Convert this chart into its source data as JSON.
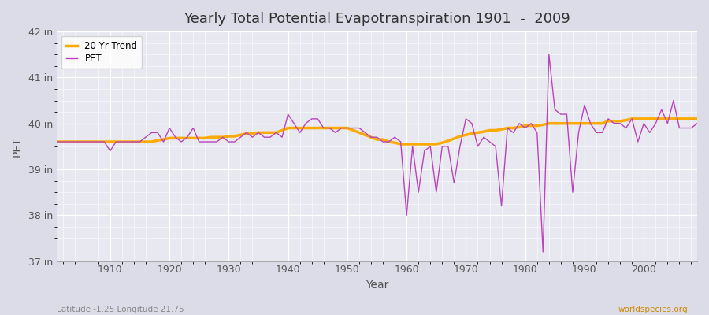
{
  "title": "Yearly Total Potential Evapotranspiration 1901  -  2009",
  "ylabel": "PET",
  "xlabel": "Year",
  "subtitle_left": "Latitude -1.25 Longitude 21.75",
  "subtitle_right": "worldspecies.org",
  "pet_color": "#bb44bb",
  "trend_color": "#ffaa00",
  "background_color": "#dcdce8",
  "plot_bg_color": "#e8e8f0",
  "grid_color": "#ffffff",
  "ylim": [
    37,
    42
  ],
  "yticks": [
    37,
    38,
    39,
    40,
    41,
    42
  ],
  "ytick_labels": [
    "37 in",
    "38 in",
    "39 in",
    "40 in",
    "41 in",
    "42 in"
  ],
  "xticks": [
    1910,
    1920,
    1930,
    1940,
    1950,
    1960,
    1970,
    1980,
    1990,
    2000
  ],
  "years": [
    1901,
    1902,
    1903,
    1904,
    1905,
    1906,
    1907,
    1908,
    1909,
    1910,
    1911,
    1912,
    1913,
    1914,
    1915,
    1916,
    1917,
    1918,
    1919,
    1920,
    1921,
    1922,
    1923,
    1924,
    1925,
    1926,
    1927,
    1928,
    1929,
    1930,
    1931,
    1932,
    1933,
    1934,
    1935,
    1936,
    1937,
    1938,
    1939,
    1940,
    1941,
    1942,
    1943,
    1944,
    1945,
    1946,
    1947,
    1948,
    1949,
    1950,
    1951,
    1952,
    1953,
    1954,
    1955,
    1956,
    1957,
    1958,
    1959,
    1960,
    1961,
    1962,
    1963,
    1964,
    1965,
    1966,
    1967,
    1968,
    1969,
    1970,
    1971,
    1972,
    1973,
    1974,
    1975,
    1976,
    1977,
    1978,
    1979,
    1980,
    1981,
    1982,
    1983,
    1984,
    1985,
    1986,
    1987,
    1988,
    1989,
    1990,
    1991,
    1992,
    1993,
    1994,
    1995,
    1996,
    1997,
    1998,
    1999,
    2000,
    2001,
    2002,
    2003,
    2004,
    2005,
    2006,
    2007,
    2008,
    2009
  ],
  "pet": [
    39.6,
    39.6,
    39.6,
    39.6,
    39.6,
    39.6,
    39.6,
    39.6,
    39.6,
    39.4,
    39.6,
    39.6,
    39.6,
    39.6,
    39.6,
    39.7,
    39.8,
    39.8,
    39.6,
    39.9,
    39.7,
    39.6,
    39.7,
    39.9,
    39.6,
    39.6,
    39.6,
    39.6,
    39.7,
    39.6,
    39.6,
    39.7,
    39.8,
    39.7,
    39.8,
    39.7,
    39.7,
    39.8,
    39.7,
    40.2,
    40.0,
    39.8,
    40.0,
    40.1,
    40.1,
    39.9,
    39.9,
    39.8,
    39.9,
    39.9,
    39.9,
    39.9,
    39.8,
    39.7,
    39.7,
    39.6,
    39.6,
    39.7,
    39.6,
    38.0,
    39.5,
    38.5,
    39.4,
    39.5,
    38.5,
    39.5,
    39.5,
    38.7,
    39.5,
    40.1,
    40.0,
    39.5,
    39.7,
    39.6,
    39.5,
    38.2,
    39.9,
    39.8,
    40.0,
    39.9,
    40.0,
    39.8,
    37.2,
    41.5,
    40.3,
    40.2,
    40.2,
    38.5,
    39.8,
    40.4,
    40.0,
    39.8,
    39.8,
    40.1,
    40.0,
    40.0,
    39.9,
    40.1,
    39.6,
    40.0,
    39.8,
    40.0,
    40.3,
    40.0,
    40.5,
    39.9,
    39.9,
    39.9,
    40.0
  ],
  "trend": [
    39.6,
    39.6,
    39.6,
    39.6,
    39.6,
    39.6,
    39.6,
    39.6,
    39.6,
    39.6,
    39.6,
    39.6,
    39.6,
    39.6,
    39.6,
    39.6,
    39.6,
    39.63,
    39.65,
    39.68,
    39.68,
    39.68,
    39.68,
    39.68,
    39.68,
    39.68,
    39.7,
    39.7,
    39.7,
    39.72,
    39.72,
    39.75,
    39.78,
    39.78,
    39.8,
    39.8,
    39.8,
    39.8,
    39.85,
    39.9,
    39.9,
    39.9,
    39.9,
    39.9,
    39.9,
    39.9,
    39.9,
    39.9,
    39.9,
    39.9,
    39.85,
    39.8,
    39.75,
    39.7,
    39.65,
    39.65,
    39.6,
    39.58,
    39.55,
    39.55,
    39.55,
    39.55,
    39.55,
    39.55,
    39.55,
    39.58,
    39.62,
    39.67,
    39.72,
    39.75,
    39.78,
    39.8,
    39.82,
    39.85,
    39.85,
    39.87,
    39.9,
    39.9,
    39.92,
    39.95,
    39.95,
    39.95,
    39.97,
    40.0,
    40.0,
    40.0,
    40.0,
    40.0,
    40.0,
    40.0,
    40.0,
    40.0,
    40.0,
    40.05,
    40.05,
    40.05,
    40.07,
    40.1,
    40.1,
    40.1,
    40.1,
    40.1,
    40.1,
    40.1,
    40.1,
    40.1,
    40.1,
    40.1,
    40.1
  ]
}
